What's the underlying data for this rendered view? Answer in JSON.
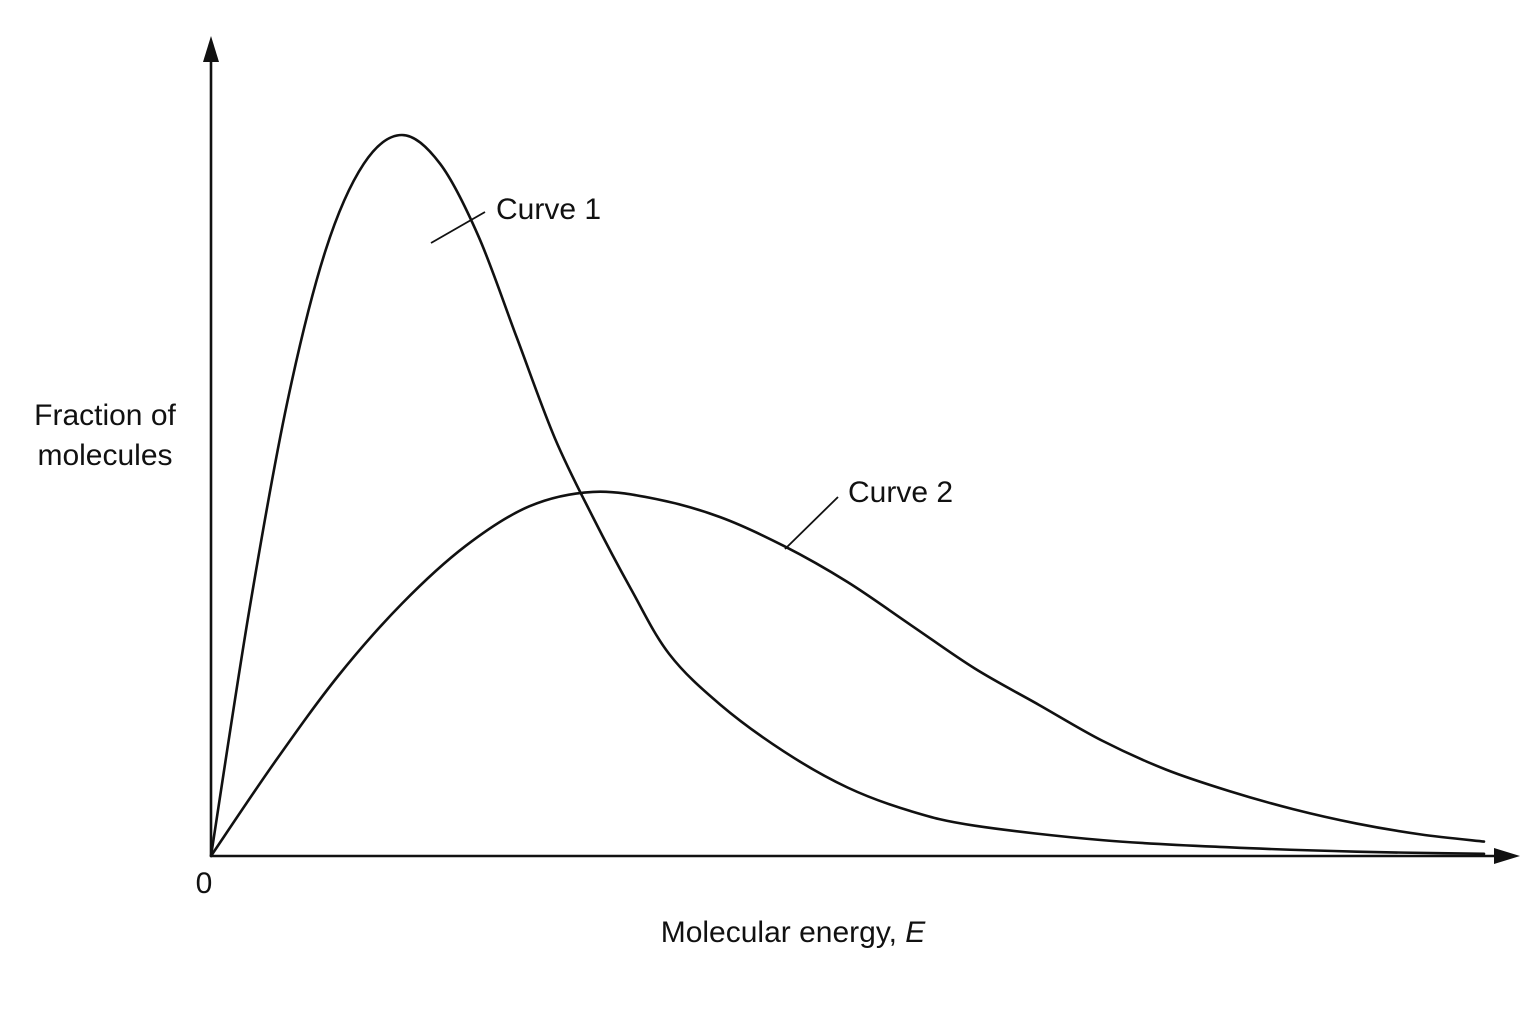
{
  "chart_data": {
    "type": "line",
    "title": "",
    "ylabel_lines": [
      "Fraction of",
      "molecules"
    ],
    "xlabel_text": "Molecular energy, ",
    "xlabel_var": "E",
    "origin_label": "0",
    "xlim": [
      0,
      10
    ],
    "ylim": [
      0,
      1
    ],
    "grid": false,
    "legend": "none",
    "series": [
      {
        "name": "Curve 1",
        "x": [
          0,
          0.3,
          0.6,
          0.9,
          1.2,
          1.5,
          1.8,
          2.1,
          2.4,
          2.7,
          3.0,
          3.3,
          3.6,
          4.0,
          4.5,
          5.0,
          5.5,
          6.0,
          7.0,
          8.0,
          9.0,
          10.0
        ],
        "y": [
          0,
          0.34,
          0.63,
          0.84,
          0.96,
          1.0,
          0.96,
          0.86,
          0.72,
          0.58,
          0.47,
          0.37,
          0.28,
          0.21,
          0.145,
          0.095,
          0.062,
          0.042,
          0.022,
          0.012,
          0.006,
          0.003
        ]
      },
      {
        "name": "Curve 2",
        "x": [
          0,
          0.5,
          1.0,
          1.5,
          2.0,
          2.5,
          3.0,
          3.5,
          4.0,
          4.5,
          5.0,
          5.5,
          6.0,
          6.5,
          7.0,
          7.5,
          8.0,
          8.5,
          9.0,
          9.5,
          10.0
        ],
        "y": [
          0,
          0.13,
          0.25,
          0.35,
          0.43,
          0.485,
          0.505,
          0.495,
          0.47,
          0.43,
          0.38,
          0.32,
          0.26,
          0.21,
          0.16,
          0.12,
          0.09,
          0.065,
          0.045,
          0.03,
          0.02
        ]
      }
    ]
  }
}
